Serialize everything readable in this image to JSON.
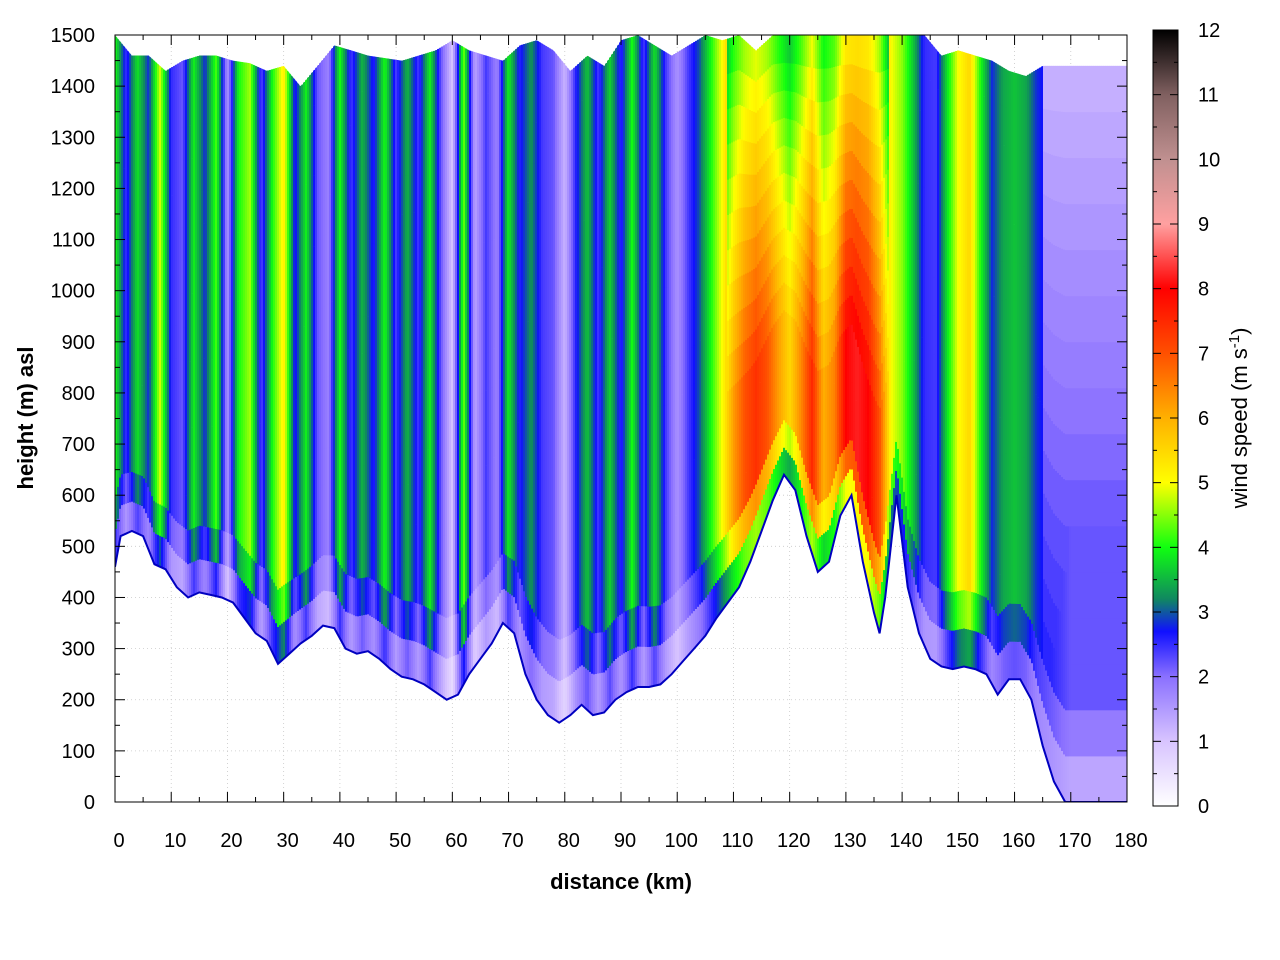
{
  "chart_data": {
    "type": "heatmap",
    "title": "",
    "xlabel": "distance (km)",
    "ylabel": "height (m) asl",
    "colorbar_label_main": "wind speed (m s",
    "colorbar_label_sup": "-1",
    "colorbar_label_close": ")",
    "xlim": [
      0,
      180
    ],
    "ylim": [
      0,
      1500
    ],
    "zlim": [
      0,
      12
    ],
    "xticks": [
      0,
      10,
      20,
      30,
      40,
      50,
      60,
      70,
      80,
      90,
      100,
      110,
      120,
      130,
      140,
      150,
      160,
      170,
      180
    ],
    "yticks": [
      0,
      100,
      200,
      300,
      400,
      500,
      600,
      700,
      800,
      900,
      1000,
      1100,
      1200,
      1300,
      1400,
      1500
    ],
    "zticks": [
      0,
      1,
      2,
      3,
      4,
      5,
      6,
      7,
      8,
      9,
      10,
      11,
      12
    ],
    "grid": true,
    "colormap": [
      {
        "value": 0,
        "color": "#ffffff"
      },
      {
        "value": 1,
        "color": "#d8c4ff"
      },
      {
        "value": 2,
        "color": "#8a70ff"
      },
      {
        "value": 2.7,
        "color": "#1010ff"
      },
      {
        "value": 3.2,
        "color": "#108860"
      },
      {
        "value": 4,
        "color": "#10ff10"
      },
      {
        "value": 5,
        "color": "#ffff00"
      },
      {
        "value": 6,
        "color": "#ffb000"
      },
      {
        "value": 7,
        "color": "#ff5000"
      },
      {
        "value": 8,
        "color": "#ff0000"
      },
      {
        "value": 9,
        "color": "#ffa0a0"
      },
      {
        "value": 10,
        "color": "#c09090"
      },
      {
        "value": 11,
        "color": "#806060"
      },
      {
        "value": 12,
        "color": "#000000"
      }
    ],
    "terrain": {
      "x": [
        0,
        1,
        3,
        5,
        7,
        9,
        11,
        13,
        15,
        17,
        19,
        21,
        23,
        25,
        27,
        29,
        31,
        33,
        35,
        37,
        39,
        41,
        43,
        45,
        47,
        49,
        51,
        53,
        55,
        57,
        59,
        61,
        63,
        65,
        67,
        69,
        71,
        73,
        75,
        77,
        79,
        81,
        83,
        85,
        87,
        89,
        91,
        93,
        95,
        97,
        99,
        101,
        103,
        105,
        107,
        109,
        111,
        113,
        115,
        117,
        119,
        121,
        123,
        125,
        127,
        129,
        131,
        133,
        135,
        136,
        137,
        139,
        141,
        143,
        145,
        147,
        149,
        151,
        153,
        155,
        157,
        159,
        161,
        163,
        165,
        167,
        169,
        171,
        173,
        175,
        177,
        180
      ],
      "height": [
        460,
        520,
        530,
        520,
        465,
        455,
        420,
        400,
        410,
        405,
        400,
        390,
        360,
        330,
        315,
        270,
        290,
        310,
        325,
        345,
        340,
        300,
        290,
        295,
        280,
        260,
        245,
        240,
        230,
        215,
        200,
        210,
        250,
        280,
        310,
        350,
        330,
        250,
        200,
        170,
        155,
        170,
        190,
        170,
        175,
        200,
        215,
        225,
        225,
        230,
        250,
        275,
        300,
        325,
        360,
        390,
        420,
        470,
        530,
        590,
        640,
        610,
        520,
        450,
        470,
        560,
        600,
        470,
        370,
        330,
        400,
        600,
        420,
        330,
        280,
        265,
        260,
        265,
        260,
        250,
        210,
        240,
        240,
        200,
        110,
        40,
        0,
        0,
        0,
        0,
        0,
        0
      ]
    },
    "top": {
      "x": [
        0,
        3,
        6,
        9,
        12,
        15,
        18,
        21,
        24,
        27,
        30,
        33,
        36,
        39,
        42,
        45,
        48,
        51,
        54,
        57,
        60,
        63,
        66,
        69,
        72,
        75,
        78,
        81,
        84,
        87,
        90,
        93,
        96,
        99,
        102,
        105,
        108,
        111,
        114,
        117,
        120,
        123,
        126,
        129,
        132,
        135,
        138,
        141,
        144,
        147,
        150,
        153,
        156,
        159,
        162,
        165,
        168,
        171,
        174,
        177,
        180
      ],
      "height": [
        1500,
        1460,
        1460,
        1430,
        1450,
        1460,
        1460,
        1450,
        1445,
        1430,
        1440,
        1400,
        1440,
        1480,
        1470,
        1460,
        1455,
        1450,
        1460,
        1470,
        1490,
        1470,
        1460,
        1450,
        1480,
        1490,
        1470,
        1430,
        1460,
        1440,
        1490,
        1500,
        1480,
        1460,
        1480,
        1500,
        1490,
        1500,
        1470,
        1500,
        1500,
        1500,
        1500,
        1500,
        1500,
        1500,
        1500,
        1500,
        1500,
        1460,
        1470,
        1460,
        1450,
        1430,
        1420,
        1440,
        1440,
        1440,
        1440,
        1440,
        1440
      ]
    },
    "columns": {
      "x": [
        0,
        2,
        4,
        6,
        8,
        10,
        12,
        14,
        16,
        18,
        20,
        22,
        24,
        26,
        28,
        30,
        32,
        34,
        36,
        38,
        40,
        42,
        44,
        46,
        48,
        50,
        52,
        54,
        56,
        58,
        60,
        62,
        64,
        66,
        68,
        70,
        72,
        74,
        76,
        78,
        80,
        82,
        84,
        86,
        88,
        90,
        92,
        94,
        96,
        98,
        100,
        102,
        104,
        106,
        108,
        110,
        112,
        114,
        116,
        118,
        120,
        122,
        124,
        126,
        128,
        130,
        132,
        134,
        136,
        138,
        140,
        142,
        144,
        146,
        148,
        150,
        152,
        154,
        156,
        158,
        160,
        162,
        164,
        166,
        168,
        170,
        172,
        174,
        176,
        178,
        180
      ],
      "speed": [
        4.0,
        2.5,
        3.8,
        2.8,
        4.8,
        2.5,
        2.2,
        3.9,
        2.8,
        4.2,
        1.6,
        4.0,
        4.6,
        2.3,
        4.0,
        5.2,
        2.6,
        3.9,
        2.2,
        1.8,
        4.0,
        2.4,
        3.5,
        2.6,
        4.0,
        2.4,
        3.5,
        2.4,
        3.9,
        2.2,
        1.0,
        4.4,
        1.4,
        2.4,
        1.8,
        3.9,
        2.6,
        3.3,
        2.4,
        2.2,
        1.2,
        2.6,
        3.6,
        2.4,
        3.7,
        2.5,
        4.0,
        2.4,
        3.8,
        2.4,
        1.6,
        2.4,
        3.0,
        4.0,
        5.0,
        6.2,
        7.0,
        7.4,
        7.0,
        6.2,
        5.5,
        6.4,
        7.5,
        6.0,
        6.5,
        8.0,
        8.2,
        8.0,
        7.0,
        5.0,
        4.5,
        3.6,
        2.5,
        2.4,
        3.8,
        5.0,
        5.5,
        4.0,
        2.8,
        3.4,
        3.6,
        3.4,
        2.8,
        2.6,
        2.4,
        2.2,
        2.2,
        2.2,
        2.2,
        2.2,
        2.2
      ]
    }
  }
}
